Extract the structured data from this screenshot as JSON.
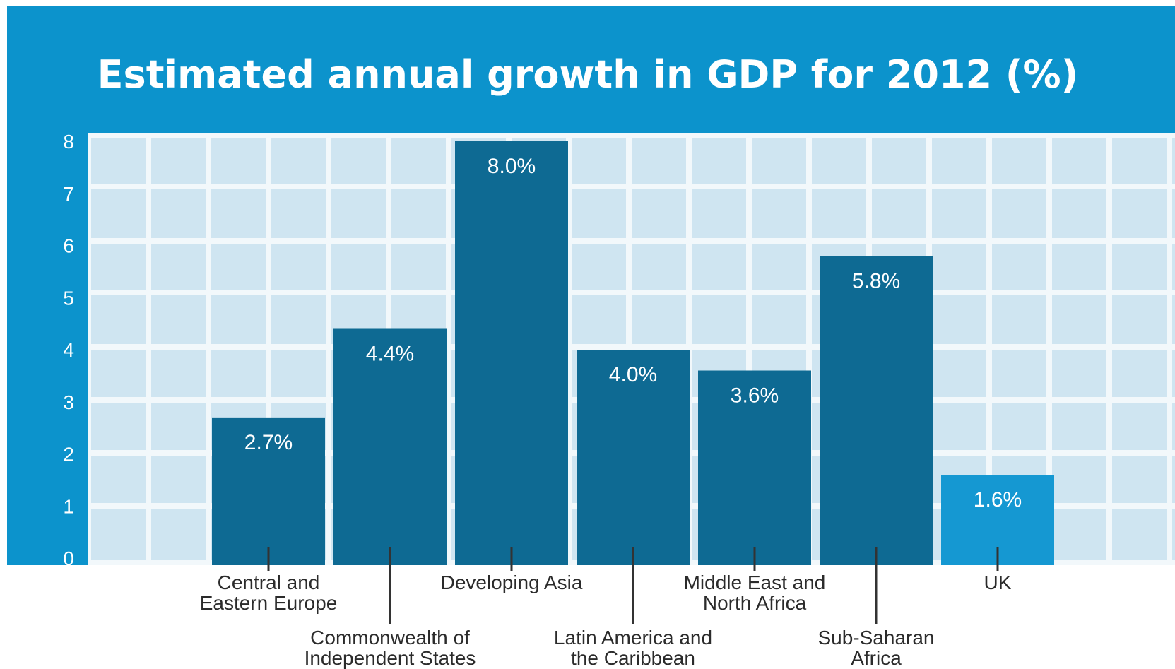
{
  "colors": {
    "header": "#0c93cc",
    "grid_bg": "#f2f8fb",
    "grid_cell": "#cfe5f1",
    "bar": "#0e6a93",
    "bar_highlight": "#1598d2",
    "tick_line": "#333333",
    "category_text": "#2b2b2b"
  },
  "chart_data": {
    "type": "bar",
    "title": "Estimated annual growth in GDP for 2012 (%)",
    "ylim": [
      0,
      8
    ],
    "yticks": [
      "0",
      "1",
      "2",
      "3",
      "4",
      "5",
      "6",
      "7",
      "8"
    ],
    "grid": true,
    "categories": [
      [
        "Central and",
        "Eastern Europe"
      ],
      [
        "Commonwealth of",
        "Independent States"
      ],
      [
        "Developing Asia"
      ],
      [
        "Latin America and",
        "the Caribbean"
      ],
      [
        "Middle East and",
        "North Africa"
      ],
      [
        "Sub-Saharan",
        "Africa"
      ],
      [
        "UK"
      ]
    ],
    "values": [
      2.7,
      4.4,
      8.0,
      4.0,
      3.6,
      5.8,
      1.6
    ],
    "value_labels": [
      "2.7%",
      "4.4%",
      "8.0%",
      "4.0%",
      "3.6%",
      "5.8%",
      "1.6%"
    ],
    "highlight": [
      false,
      false,
      false,
      false,
      false,
      false,
      true
    ]
  }
}
